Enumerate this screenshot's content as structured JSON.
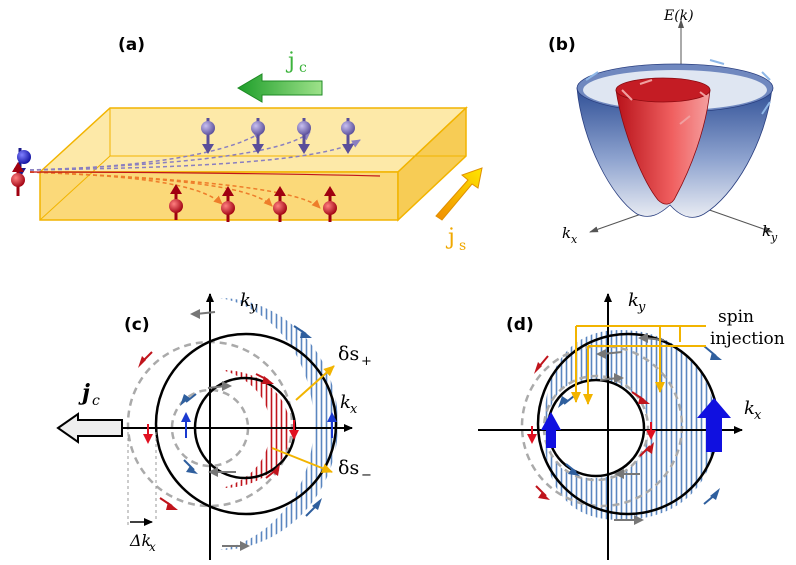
{
  "panels": {
    "a": {
      "label": "(a)",
      "jc": "j",
      "jc_sub": "c",
      "js": "j",
      "js_sub": "s"
    },
    "b": {
      "label": "(b)",
      "axis_z": "E(k)",
      "axis_x": "k",
      "axis_x_sub": "x",
      "axis_y": "k",
      "axis_y_sub": "y"
    },
    "c": {
      "label": "(c)",
      "ky": "k",
      "ky_sub": "y",
      "kx": "k",
      "kx_sub": "x",
      "jc": "j",
      "jc_sub": "c",
      "ds_plus": "δs",
      "ds_plus_sub": "+",
      "ds_minus": "δs",
      "ds_minus_sub": "−",
      "dkx": "Δk",
      "dkx_sub": "x"
    },
    "d": {
      "label": "(d)",
      "ky": "k",
      "ky_sub": "y",
      "kx": "k",
      "kx_sub": "x",
      "spin_line1": "spin",
      "spin_line2": "injection"
    }
  },
  "colors": {
    "slab": "#fbd979",
    "jc_arrow": "#3cb33c",
    "js_arrow": "#f2b400",
    "js_text": "#f0a800",
    "spin_up": "#c0141c",
    "spin_down": "#7b6fae",
    "blue_hatch": "#2f5f9e",
    "red_hatch": "#c0141c",
    "gold_pointer": "#f2b400",
    "cone_outer": "#2f4f96",
    "cone_inner": "#d22a2a"
  }
}
